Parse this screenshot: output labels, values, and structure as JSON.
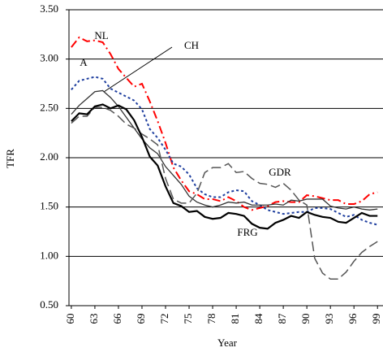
{
  "chart_data": {
    "type": "line",
    "y_label": "TFR",
    "x_label": "Year",
    "x": [
      60,
      61,
      62,
      63,
      64,
      65,
      66,
      67,
      68,
      69,
      70,
      71,
      72,
      73,
      74,
      75,
      76,
      77,
      78,
      79,
      80,
      81,
      82,
      83,
      84,
      85,
      86,
      87,
      88,
      89,
      90,
      91,
      92,
      93,
      94,
      95,
      96,
      97,
      98,
      99
    ],
    "xlim": [
      59.7,
      99.7
    ],
    "xticks": [
      60,
      63,
      66,
      69,
      72,
      75,
      78,
      81,
      84,
      87,
      90,
      93,
      96,
      99
    ],
    "ylim": [
      0.5,
      3.5
    ],
    "yticks": [
      {
        "value": 0.5,
        "label": "0.50"
      },
      {
        "value": 1,
        "label": "1.00"
      },
      {
        "value": 1.5,
        "label": "1.50"
      },
      {
        "value": 2,
        "label": "2.00"
      },
      {
        "value": 2.5,
        "label": "2.50"
      },
      {
        "value": 3,
        "label": "3.00"
      },
      {
        "value": 3.5,
        "label": "3.50"
      }
    ],
    "grid": true,
    "series": [
      {
        "name": "NL",
        "color": "#ff0000",
        "line_style": "dashdot",
        "values": [
          3.12,
          3.22,
          3.18,
          3.19,
          3.17,
          3.05,
          2.9,
          2.81,
          2.72,
          2.75,
          2.57,
          2.37,
          2.15,
          1.9,
          1.77,
          1.66,
          1.63,
          1.58,
          1.58,
          1.56,
          1.6,
          1.56,
          1.5,
          1.47,
          1.49,
          1.51,
          1.55,
          1.56,
          1.55,
          1.55,
          1.62,
          1.61,
          1.59,
          1.57,
          1.57,
          1.53,
          1.53,
          1.56,
          1.63,
          1.65
        ]
      },
      {
        "name": "A",
        "color": "#1f3f9f",
        "line_style": "dotted",
        "values": [
          2.69,
          2.78,
          2.8,
          2.82,
          2.8,
          2.7,
          2.66,
          2.62,
          2.58,
          2.49,
          2.29,
          2.2,
          2.08,
          1.94,
          1.91,
          1.83,
          1.69,
          1.63,
          1.6,
          1.6,
          1.65,
          1.67,
          1.66,
          1.56,
          1.52,
          1.47,
          1.45,
          1.43,
          1.44,
          1.45,
          1.45,
          1.49,
          1.49,
          1.48,
          1.44,
          1.4,
          1.42,
          1.37,
          1.34,
          1.32
        ]
      },
      {
        "name": "CH",
        "color": "#333333",
        "line_style": "solid",
        "values": [
          2.44,
          2.53,
          2.6,
          2.67,
          2.68,
          2.61,
          2.52,
          2.41,
          2.3,
          2.19,
          2.1,
          2.04,
          1.91,
          1.82,
          1.73,
          1.61,
          1.55,
          1.52,
          1.5,
          1.52,
          1.55,
          1.54,
          1.55,
          1.52,
          1.52,
          1.52,
          1.53,
          1.52,
          1.57,
          1.56,
          1.58,
          1.58,
          1.58,
          1.51,
          1.49,
          1.48,
          1.5,
          1.48,
          1.47,
          1.48
        ]
      },
      {
        "name": "GDR",
        "color": "#555555",
        "line_style": "dashed",
        "values": [
          2.35,
          2.42,
          2.42,
          2.51,
          2.51,
          2.48,
          2.42,
          2.34,
          2.3,
          2.24,
          2.19,
          2.13,
          1.79,
          1.58,
          1.54,
          1.54,
          1.64,
          1.85,
          1.9,
          1.9,
          1.94,
          1.85,
          1.86,
          1.79,
          1.74,
          1.73,
          1.7,
          1.74,
          1.67,
          1.57,
          1.52,
          0.98,
          0.83,
          0.77,
          0.77,
          0.84,
          0.95,
          1.04,
          1.1,
          1.15
        ]
      },
      {
        "name": "FRG",
        "color": "#000000",
        "line_style": "thick",
        "values": [
          2.37,
          2.45,
          2.44,
          2.52,
          2.54,
          2.5,
          2.53,
          2.49,
          2.38,
          2.21,
          2.01,
          1.92,
          1.71,
          1.54,
          1.51,
          1.45,
          1.46,
          1.4,
          1.38,
          1.39,
          1.44,
          1.43,
          1.41,
          1.33,
          1.29,
          1.28,
          1.34,
          1.37,
          1.41,
          1.39,
          1.45,
          1.42,
          1.4,
          1.39,
          1.35,
          1.34,
          1.39,
          1.44,
          1.41,
          1.41
        ]
      }
    ]
  }
}
